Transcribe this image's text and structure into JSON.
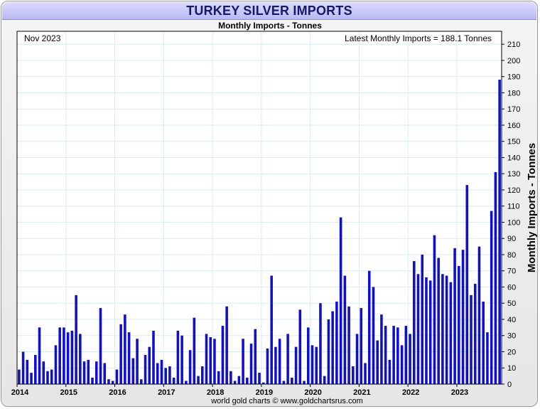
{
  "header": {
    "title": "TURKEY SILVER IMPORTS",
    "subtitle": "Monthly Imports - Tonnes"
  },
  "source": "world gold charts © www.goldchartsrus.com",
  "colors": {
    "bar": "#1010cc",
    "grid": "#d9eef0",
    "title_bg": "#c8c8f8",
    "title_text": "#18186a"
  },
  "chart_data": {
    "type": "bar",
    "date_label": "Nov 2023",
    "annotation": "Latest Monthly Imports = 188.1 Tonnes",
    "ylabel": "Monthly Imports - Tonnes",
    "xlabel": "",
    "ylim": [
      0,
      218
    ],
    "y_ticks": [
      0,
      10,
      20,
      30,
      40,
      50,
      60,
      70,
      80,
      90,
      100,
      110,
      120,
      130,
      140,
      150,
      160,
      170,
      180,
      190,
      200,
      210
    ],
    "y_axis_side": "right",
    "grid": true,
    "start": "2014-01",
    "end": "2023-11",
    "x_ticks": [
      "2014",
      "2015",
      "2016",
      "2017",
      "2018",
      "2019",
      "2020",
      "2021",
      "2022",
      "2023"
    ],
    "categories": [
      "2014-01",
      "2014-02",
      "2014-03",
      "2014-04",
      "2014-05",
      "2014-06",
      "2014-07",
      "2014-08",
      "2014-09",
      "2014-10",
      "2014-11",
      "2014-12",
      "2015-01",
      "2015-02",
      "2015-03",
      "2015-04",
      "2015-05",
      "2015-06",
      "2015-07",
      "2015-08",
      "2015-09",
      "2015-10",
      "2015-11",
      "2015-12",
      "2016-01",
      "2016-02",
      "2016-03",
      "2016-04",
      "2016-05",
      "2016-06",
      "2016-07",
      "2016-08",
      "2016-09",
      "2016-10",
      "2016-11",
      "2016-12",
      "2017-01",
      "2017-02",
      "2017-03",
      "2017-04",
      "2017-05",
      "2017-06",
      "2017-07",
      "2017-08",
      "2017-09",
      "2017-10",
      "2017-11",
      "2017-12",
      "2018-01",
      "2018-02",
      "2018-03",
      "2018-04",
      "2018-05",
      "2018-06",
      "2018-07",
      "2018-08",
      "2018-09",
      "2018-10",
      "2018-11",
      "2018-12",
      "2019-01",
      "2019-02",
      "2019-03",
      "2019-04",
      "2019-05",
      "2019-06",
      "2019-07",
      "2019-08",
      "2019-09",
      "2019-10",
      "2019-11",
      "2019-12",
      "2020-01",
      "2020-02",
      "2020-03",
      "2020-04",
      "2020-05",
      "2020-06",
      "2020-07",
      "2020-08",
      "2020-09",
      "2020-10",
      "2020-11",
      "2020-12",
      "2021-01",
      "2021-02",
      "2021-03",
      "2021-04",
      "2021-05",
      "2021-06",
      "2021-07",
      "2021-08",
      "2021-09",
      "2021-10",
      "2021-11",
      "2021-12",
      "2022-01",
      "2022-02",
      "2022-03",
      "2022-04",
      "2022-05",
      "2022-06",
      "2022-07",
      "2022-08",
      "2022-09",
      "2022-10",
      "2022-11",
      "2022-12",
      "2023-01",
      "2023-02",
      "2023-03",
      "2023-04",
      "2023-05",
      "2023-06",
      "2023-07",
      "2023-08",
      "2023-09",
      "2023-10",
      "2023-11"
    ],
    "series": [
      {
        "values": [
          9,
          20,
          15,
          7,
          18,
          35,
          14,
          8,
          9,
          24,
          35,
          35,
          32,
          33,
          55,
          31,
          14,
          15,
          4,
          14,
          47,
          13,
          3,
          2,
          9,
          37,
          43,
          32,
          16,
          28,
          3,
          18,
          23,
          33,
          13,
          15,
          10,
          11,
          4,
          33,
          30,
          2,
          21,
          41,
          5,
          11,
          31,
          29,
          28,
          8,
          36,
          48,
          8,
          2,
          5,
          28,
          4,
          25,
          34,
          7,
          1,
          22,
          67,
          23,
          28,
          2,
          31,
          4,
          23,
          46,
          2,
          35,
          24,
          23,
          50,
          5,
          40,
          45,
          51,
          103,
          67,
          48,
          11,
          31,
          47,
          13,
          70,
          60,
          27,
          43,
          36,
          15,
          36,
          35,
          24,
          36,
          31,
          76,
          68,
          80,
          66,
          64,
          92,
          78,
          68,
          67,
          63,
          84,
          73,
          83,
          123,
          55,
          62,
          85,
          51,
          32,
          107,
          131,
          188.1
        ]
      }
    ]
  }
}
